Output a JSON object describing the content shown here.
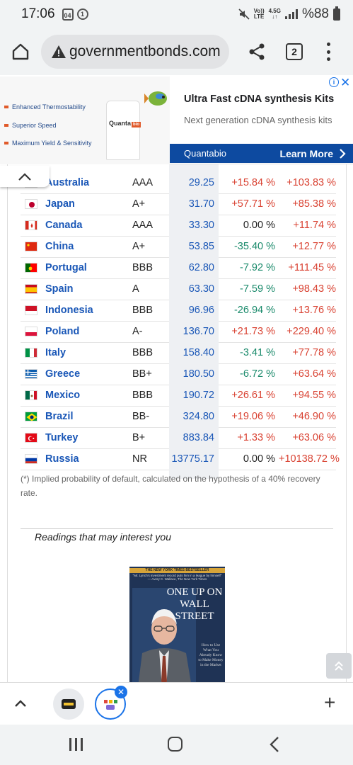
{
  "status_bar": {
    "time": "17:06",
    "notif_1": "04",
    "notif_2": "1",
    "net_1": "Vo))",
    "net_2": "LTE",
    "net_3": "4.5G",
    "battery": "%88"
  },
  "browser": {
    "url": "governmentbonds.com",
    "tab_count": "2"
  },
  "ad": {
    "features": [
      "Enhanced Thermostability",
      "Superior Speed",
      "Maximum Yield & Sensitivity"
    ],
    "product_label": "Quanta",
    "product_badge": "bio",
    "headline": "Ultra Fast cDNA synthesis Kits",
    "subline": "Next generation cDNA synthesis kits",
    "brand": "Quantabio",
    "cta": "Learn More"
  },
  "table": {
    "rows": [
      {
        "country": "Australia",
        "flag": "au",
        "rating": "AAA",
        "yield": "29.25",
        "var1": "+15.84 %",
        "var2": "+103.83 %"
      },
      {
        "country": "Japan",
        "flag": "jp",
        "rating": "A+",
        "yield": "31.70",
        "var1": "+57.71 %",
        "var2": "+85.38 %"
      },
      {
        "country": "Canada",
        "flag": "ca",
        "rating": "AAA",
        "yield": "33.30",
        "var1": "0.00 %",
        "var2": "+11.74 %"
      },
      {
        "country": "China",
        "flag": "cn",
        "rating": "A+",
        "yield": "53.85",
        "var1": "-35.40 %",
        "var2": "+12.77 %"
      },
      {
        "country": "Portugal",
        "flag": "pt",
        "rating": "BBB",
        "yield": "62.80",
        "var1": "-7.92 %",
        "var2": "+111.45 %"
      },
      {
        "country": "Spain",
        "flag": "es",
        "rating": "A",
        "yield": "63.30",
        "var1": "-7.59 %",
        "var2": "+98.43 %"
      },
      {
        "country": "Indonesia",
        "flag": "id",
        "rating": "BBB",
        "yield": "96.96",
        "var1": "-26.94 %",
        "var2": "+13.76 %"
      },
      {
        "country": "Poland",
        "flag": "pl",
        "rating": "A-",
        "yield": "136.70",
        "var1": "+21.73 %",
        "var2": "+229.40 %"
      },
      {
        "country": "Italy",
        "flag": "it",
        "rating": "BBB",
        "yield": "158.40",
        "var1": "-3.41 %",
        "var2": "+77.78 %"
      },
      {
        "country": "Greece",
        "flag": "gr",
        "rating": "BB+",
        "yield": "180.50",
        "var1": "-6.72 %",
        "var2": "+63.64 %"
      },
      {
        "country": "Mexico",
        "flag": "mx",
        "rating": "BBB",
        "yield": "190.72",
        "var1": "+26.61 %",
        "var2": "+94.55 %"
      },
      {
        "country": "Brazil",
        "flag": "br",
        "rating": "BB-",
        "yield": "324.80",
        "var1": "+19.06 %",
        "var2": "+46.90 %"
      },
      {
        "country": "Turkey",
        "flag": "tr",
        "rating": "B+",
        "yield": "883.84",
        "var1": "+1.33 %",
        "var2": "+63.06 %"
      },
      {
        "country": "Russia",
        "flag": "ru",
        "rating": "NR",
        "yield": "13775.17",
        "var1": "0.00 %",
        "var2": "+10138.72 %"
      }
    ]
  },
  "footnote": "(*) Implied probability of default, calculated on the hypothesis of a 40% recovery rate.",
  "readings_title": "Readings that may interest you",
  "book": {
    "banner": "THE NEW YORK TIMES BESTSELLER",
    "quote": "\"Mr. Lynch's investment record puts him in a league by himself\" — Avery C. Wallace, The New York Times",
    "title": "ONE UP ON WALL STREET",
    "subtitle": "How to Use What You Already Know to Make Money in the Market"
  },
  "colors": {
    "positive": "#d94232",
    "negative": "#1a8a6b",
    "link": "#1a57b7",
    "ad_cta_bg": "#0d4aa0"
  }
}
